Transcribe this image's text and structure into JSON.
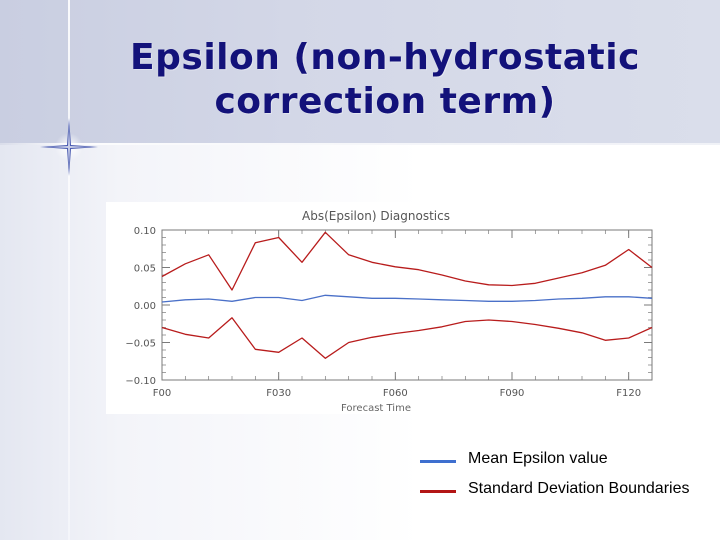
{
  "slide": {
    "title_line1": "Epsilon  (non-hydrostatic",
    "title_line2": "correction term)",
    "colors": {
      "title": "#13127a",
      "mean_series": "#4a70c8",
      "std_series": "#b81c1c",
      "axis": "#7a7a7a"
    },
    "icons": [
      "sparkle-star-icon"
    ]
  },
  "legend": {
    "items": [
      {
        "label": "Mean Epsilon value",
        "color": "#3e6fcf"
      },
      {
        "label": "Standard Deviation Boundaries",
        "color": "#b31515"
      }
    ]
  },
  "chart_data": {
    "type": "line",
    "title": "Abs(Epsilon)  Diagnostics",
    "xlabel": "Forecast  Time",
    "ylabel": "",
    "x_ticks": [
      "F00",
      "F030",
      "F060",
      "F090",
      "F120"
    ],
    "x_tick_values": [
      0,
      30,
      60,
      90,
      120
    ],
    "y_ticks": [
      "0.10",
      "0.05",
      "0.00",
      "−0.05",
      "−0.10"
    ],
    "y_tick_values": [
      0.1,
      0.05,
      0.0,
      -0.05,
      -0.1
    ],
    "xlim": [
      0,
      126
    ],
    "ylim": [
      -0.1,
      0.1
    ],
    "grid": false,
    "legend_placement": "below-right",
    "x": [
      0,
      6,
      12,
      18,
      24,
      30,
      36,
      42,
      48,
      54,
      60,
      66,
      72,
      78,
      84,
      90,
      96,
      102,
      108,
      114,
      120,
      126
    ],
    "series": [
      {
        "name": "Mean Epsilon value",
        "color": "#4a70c8",
        "values": [
          0.004,
          0.007,
          0.008,
          0.005,
          0.01,
          0.01,
          0.006,
          0.013,
          0.011,
          0.009,
          0.009,
          0.008,
          0.007,
          0.006,
          0.005,
          0.005,
          0.006,
          0.008,
          0.009,
          0.011,
          0.011,
          0.009
        ]
      },
      {
        "name": "Standard Deviation Upper",
        "color": "#b81c1c",
        "values": [
          0.038,
          0.055,
          0.067,
          0.02,
          0.083,
          0.09,
          0.057,
          0.097,
          0.067,
          0.057,
          0.051,
          0.047,
          0.04,
          0.032,
          0.027,
          0.026,
          0.029,
          0.036,
          0.043,
          0.053,
          0.074,
          0.05
        ]
      },
      {
        "name": "Standard Deviation Lower",
        "color": "#b81c1c",
        "values": [
          -0.03,
          -0.039,
          -0.044,
          -0.017,
          -0.059,
          -0.063,
          -0.044,
          -0.071,
          -0.05,
          -0.043,
          -0.038,
          -0.034,
          -0.029,
          -0.022,
          -0.02,
          -0.022,
          -0.026,
          -0.031,
          -0.037,
          -0.047,
          -0.044,
          -0.03
        ]
      }
    ]
  }
}
